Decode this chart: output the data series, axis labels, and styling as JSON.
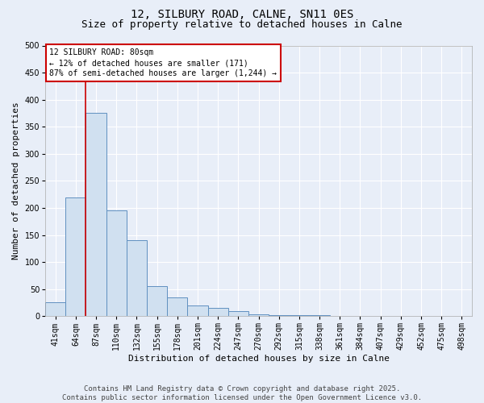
{
  "title": "12, SILBURY ROAD, CALNE, SN11 0ES",
  "subtitle": "Size of property relative to detached houses in Calne",
  "xlabel": "Distribution of detached houses by size in Calne",
  "ylabel": "Number of detached properties",
  "categories": [
    "41sqm",
    "64sqm",
    "87sqm",
    "110sqm",
    "132sqm",
    "155sqm",
    "178sqm",
    "201sqm",
    "224sqm",
    "247sqm",
    "270sqm",
    "292sqm",
    "315sqm",
    "338sqm",
    "361sqm",
    "384sqm",
    "407sqm",
    "429sqm",
    "452sqm",
    "475sqm",
    "498sqm"
  ],
  "values": [
    25,
    220,
    375,
    195,
    140,
    55,
    35,
    20,
    15,
    10,
    4,
    2,
    2,
    2,
    1,
    1,
    1,
    1,
    1,
    1,
    1
  ],
  "bar_color": "#d0e0f0",
  "bar_edge_color": "#6090c0",
  "vline_color": "#cc0000",
  "vline_x": 1.5,
  "annotation_text": "12 SILBURY ROAD: 80sqm\n← 12% of detached houses are smaller (171)\n87% of semi-detached houses are larger (1,244) →",
  "annotation_box_edgecolor": "#cc0000",
  "ylim": [
    0,
    500
  ],
  "yticks": [
    0,
    50,
    100,
    150,
    200,
    250,
    300,
    350,
    400,
    450,
    500
  ],
  "footer_line1": "Contains HM Land Registry data © Crown copyright and database right 2025.",
  "footer_line2": "Contains public sector information licensed under the Open Government Licence v3.0.",
  "bg_color": "#e8eef8",
  "plot_bg_color": "#e8eef8",
  "grid_color": "#ffffff",
  "title_fontsize": 10,
  "subtitle_fontsize": 9,
  "axis_label_fontsize": 8,
  "tick_fontsize": 7,
  "annotation_fontsize": 7,
  "footer_fontsize": 6.5
}
